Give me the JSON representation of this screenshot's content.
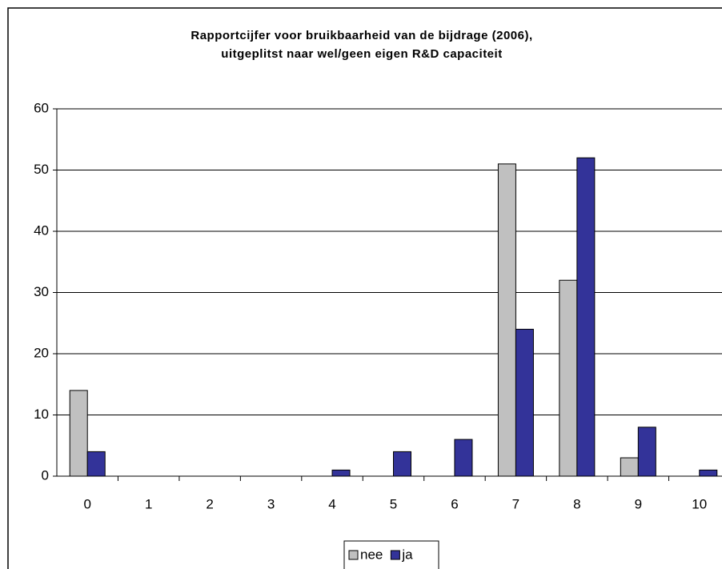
{
  "chart_data": {
    "type": "bar",
    "title": [
      "Rapportcijfer voor bruikbaarheid van de bijdrage (2006),",
      "uitgeplitst naar wel/geen eigen R&D capaciteit"
    ],
    "categories": [
      "0",
      "1",
      "2",
      "3",
      "4",
      "5",
      "6",
      "7",
      "8",
      "9",
      "10"
    ],
    "series": [
      {
        "name": "nee",
        "color": "#c0c0c0",
        "values": [
          14,
          0,
          0,
          0,
          0,
          0,
          0,
          51,
          32,
          3,
          0
        ]
      },
      {
        "name": "ja",
        "color": "#333399",
        "values": [
          4,
          0,
          0,
          0,
          1,
          4,
          6,
          24,
          52,
          8,
          1
        ]
      }
    ],
    "ylim": [
      0,
      60
    ],
    "yticks": [
      0,
      10,
      20,
      30,
      40,
      50,
      60
    ],
    "grid": true,
    "legend": "bottom"
  }
}
